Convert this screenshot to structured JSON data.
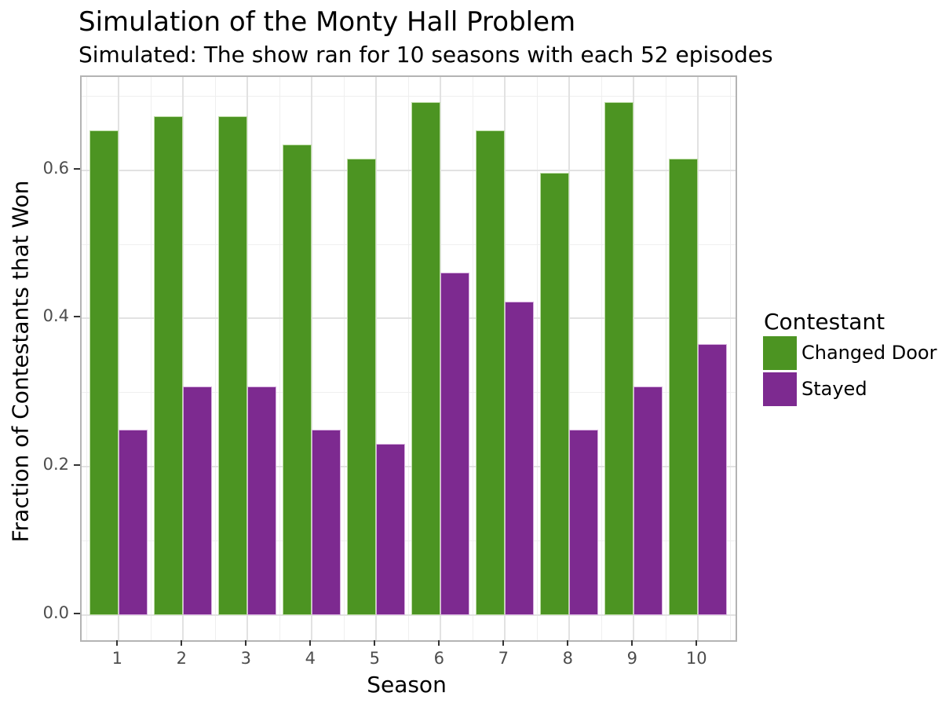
{
  "title": "Simulation of the Monty Hall Problem",
  "subtitle": "Simulated: The show ran for 10 seasons with each 52 episodes",
  "chart_data": {
    "type": "bar",
    "title": "Simulation of the Monty Hall Problem",
    "subtitle": "Simulated: The show ran for 10 seasons with each 52 episodes",
    "xlabel": "Season",
    "ylabel": "Fraction of Contestants that Won",
    "categories": [
      "1",
      "2",
      "3",
      "4",
      "5",
      "6",
      "7",
      "8",
      "9",
      "10"
    ],
    "series": [
      {
        "name": "Changed Door",
        "color": "#4c9422",
        "edge_color": "#bcdca4",
        "values": [
          0.654,
          0.673,
          0.673,
          0.635,
          0.615,
          0.692,
          0.654,
          0.596,
          0.692,
          0.615
        ]
      },
      {
        "name": "Stayed",
        "color": "#7d2a90",
        "edge_color": "#d8b0e0",
        "values": [
          0.25,
          0.308,
          0.308,
          0.25,
          0.231,
          0.462,
          0.423,
          0.25,
          0.308,
          0.365
        ]
      }
    ],
    "ylim": [
      0.0,
      0.726
    ],
    "y_tick_labels": [
      "0.0",
      "0.2",
      "0.4",
      "0.6"
    ],
    "y_major_ticks": [
      0.0,
      0.2,
      0.4,
      0.6
    ],
    "y_minor_ticks": [
      0.1,
      0.3,
      0.5,
      0.7
    ],
    "grid": true,
    "legend_title": "Contestant",
    "legend_position": "right"
  },
  "colors": {
    "grid_major": "#e2e2e2",
    "grid_minor": "#efefef",
    "panel_border": "#b4b4b4",
    "tick": "#333333",
    "tick_label": "#4d4d4d",
    "text": "#000000",
    "background": "#ffffff"
  }
}
